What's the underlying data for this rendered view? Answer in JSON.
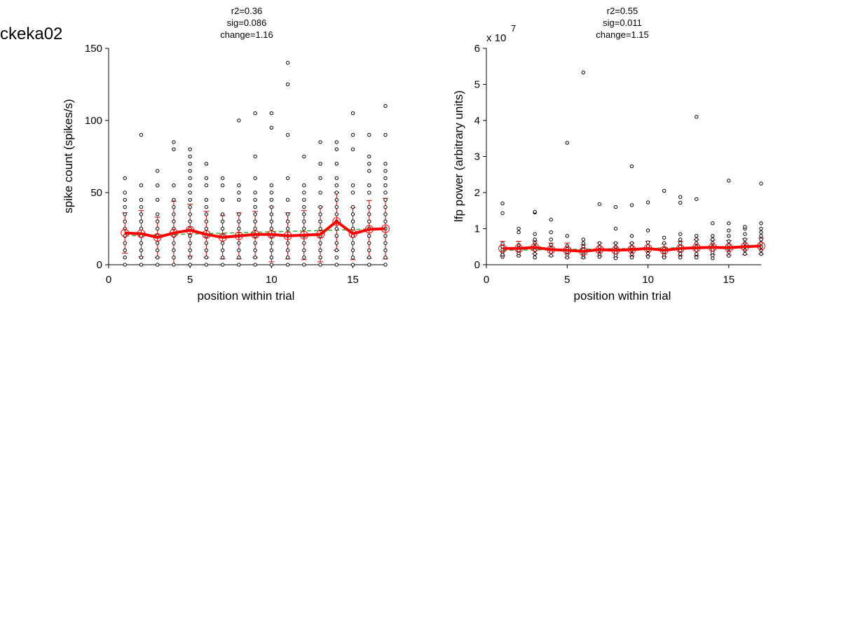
{
  "figure_title": "ckeka02",
  "chart_data": [
    {
      "type": "scatter",
      "annotation": [
        "r2=0.36",
        "sig=0.086",
        "change=1.16"
      ],
      "xlabel": "position within trial",
      "ylabel": "spike count (spikes/s)",
      "xlim": [
        0,
        17
      ],
      "ylim": [
        0,
        150
      ],
      "xticks": [
        0,
        5,
        10,
        15
      ],
      "yticks": [
        0,
        50,
        100,
        150
      ],
      "exponent_label": "",
      "colors": {
        "points": "#000000",
        "mean": "#ff0000",
        "errorbar": "#cc0000",
        "fit": "#33aa33"
      },
      "points": [
        {
          "x": 1,
          "y": [
            0,
            5,
            10,
            15,
            20,
            25,
            30,
            35,
            40,
            45,
            50,
            60
          ]
        },
        {
          "x": 2,
          "y": [
            0,
            5,
            10,
            15,
            20,
            25,
            30,
            35,
            40,
            45,
            55,
            90
          ]
        },
        {
          "x": 3,
          "y": [
            0,
            5,
            10,
            15,
            20,
            25,
            30,
            35,
            45,
            55,
            65
          ]
        },
        {
          "x": 4,
          "y": [
            0,
            5,
            10,
            15,
            20,
            25,
            30,
            35,
            40,
            45,
            55,
            80,
            85
          ]
        },
        {
          "x": 5,
          "y": [
            0,
            5,
            10,
            15,
            20,
            25,
            30,
            35,
            40,
            45,
            50,
            55,
            60,
            65,
            70,
            75,
            80
          ]
        },
        {
          "x": 6,
          "y": [
            0,
            5,
            10,
            15,
            20,
            25,
            30,
            35,
            40,
            45,
            55,
            60,
            70
          ]
        },
        {
          "x": 7,
          "y": [
            0,
            5,
            10,
            15,
            20,
            25,
            30,
            35,
            45,
            55,
            60
          ]
        },
        {
          "x": 8,
          "y": [
            0,
            5,
            10,
            15,
            20,
            25,
            30,
            35,
            45,
            50,
            55,
            100
          ]
        },
        {
          "x": 9,
          "y": [
            0,
            5,
            10,
            15,
            20,
            25,
            30,
            35,
            40,
            45,
            50,
            60,
            75,
            105
          ]
        },
        {
          "x": 10,
          "y": [
            0,
            5,
            10,
            15,
            20,
            25,
            30,
            35,
            40,
            45,
            50,
            55,
            95,
            105
          ]
        },
        {
          "x": 11,
          "y": [
            0,
            5,
            10,
            15,
            20,
            25,
            30,
            35,
            45,
            60,
            90,
            125,
            140
          ]
        },
        {
          "x": 12,
          "y": [
            0,
            5,
            10,
            15,
            20,
            25,
            30,
            35,
            40,
            45,
            50,
            55,
            75
          ]
        },
        {
          "x": 13,
          "y": [
            0,
            5,
            10,
            15,
            20,
            25,
            30,
            35,
            40,
            50,
            60,
            70,
            85
          ]
        },
        {
          "x": 14,
          "y": [
            0,
            5,
            10,
            15,
            20,
            25,
            30,
            35,
            40,
            45,
            50,
            55,
            60,
            70,
            80,
            85
          ]
        },
        {
          "x": 15,
          "y": [
            0,
            5,
            10,
            15,
            20,
            25,
            30,
            35,
            40,
            50,
            55,
            80,
            90,
            105
          ]
        },
        {
          "x": 16,
          "y": [
            0,
            5,
            10,
            15,
            20,
            25,
            30,
            35,
            40,
            50,
            55,
            65,
            70,
            75,
            90
          ]
        },
        {
          "x": 17,
          "y": [
            0,
            5,
            10,
            15,
            20,
            25,
            30,
            35,
            40,
            45,
            50,
            55,
            60,
            65,
            70,
            90,
            110
          ]
        }
      ],
      "mean": [
        22,
        21.5,
        19,
        22,
        24,
        21,
        19,
        20,
        21,
        21,
        20,
        20.5,
        21,
        30,
        21.5,
        24.5,
        25
      ],
      "sd": [
        14,
        16,
        14,
        22,
        18,
        16,
        15,
        16,
        16,
        19,
        16,
        17,
        19,
        20,
        18,
        20,
        21
      ],
      "fit": [
        20,
        25
      ]
    },
    {
      "type": "scatter",
      "annotation": [
        "r2=0.55",
        "sig=0.011",
        "change=1.15"
      ],
      "xlabel": "position within trial",
      "ylabel": "lfp power (arbitrary units)",
      "xlim": [
        0,
        17
      ],
      "ylim": [
        0,
        6
      ],
      "xticks": [
        0,
        5,
        10,
        15
      ],
      "yticks": [
        0,
        1,
        2,
        3,
        4,
        5,
        6
      ],
      "exponent_label": "x 10",
      "exponent_power": "7",
      "colors": {
        "points": "#000000",
        "mean": "#ff0000",
        "errorbar": "#cc0000",
        "fit": "#33aa33"
      },
      "points": [
        {
          "x": 1,
          "y": [
            0.22,
            0.28,
            0.35,
            0.42,
            0.5,
            0.58,
            1.43,
            1.7
          ]
        },
        {
          "x": 2,
          "y": [
            0.25,
            0.32,
            0.4,
            0.48,
            0.55,
            0.9,
            1.0
          ]
        },
        {
          "x": 3,
          "y": [
            0.2,
            0.3,
            0.4,
            0.5,
            0.6,
            0.7,
            0.85,
            1.45,
            1.47
          ]
        },
        {
          "x": 4,
          "y": [
            0.25,
            0.35,
            0.45,
            0.55,
            0.7,
            0.9,
            1.25
          ]
        },
        {
          "x": 5,
          "y": [
            0.2,
            0.28,
            0.36,
            0.44,
            0.52,
            0.8,
            3.38
          ]
        },
        {
          "x": 6,
          "y": [
            0.2,
            0.27,
            0.34,
            0.42,
            0.5,
            0.6,
            0.7,
            5.33
          ]
        },
        {
          "x": 7,
          "y": [
            0.22,
            0.3,
            0.4,
            0.5,
            0.6,
            1.68
          ]
        },
        {
          "x": 8,
          "y": [
            0.18,
            0.26,
            0.34,
            0.42,
            0.5,
            0.6,
            1.0,
            1.6
          ]
        },
        {
          "x": 9,
          "y": [
            0.2,
            0.3,
            0.4,
            0.5,
            0.6,
            0.8,
            1.65,
            2.73
          ]
        },
        {
          "x": 10,
          "y": [
            0.22,
            0.32,
            0.42,
            0.52,
            0.62,
            0.95,
            1.73
          ]
        },
        {
          "x": 11,
          "y": [
            0.2,
            0.28,
            0.36,
            0.44,
            0.6,
            0.75,
            2.05
          ]
        },
        {
          "x": 12,
          "y": [
            0.2,
            0.3,
            0.4,
            0.5,
            0.6,
            0.7,
            0.85,
            1.72,
            1.88
          ]
        },
        {
          "x": 13,
          "y": [
            0.2,
            0.3,
            0.4,
            0.5,
            0.6,
            0.7,
            0.8,
            1.82,
            4.1
          ]
        },
        {
          "x": 14,
          "y": [
            0.18,
            0.26,
            0.34,
            0.42,
            0.5,
            0.6,
            0.7,
            0.8,
            1.15
          ]
        },
        {
          "x": 15,
          "y": [
            0.25,
            0.35,
            0.45,
            0.55,
            0.65,
            0.8,
            0.95,
            1.15,
            2.33
          ]
        },
        {
          "x": 16,
          "y": [
            0.3,
            0.4,
            0.5,
            0.6,
            0.7,
            0.85,
            1.0,
            1.05
          ]
        },
        {
          "x": 17,
          "y": [
            0.3,
            0.4,
            0.5,
            0.6,
            0.7,
            0.8,
            0.9,
            1.0,
            1.15,
            2.25
          ]
        }
      ],
      "mean": [
        0.45,
        0.45,
        0.48,
        0.42,
        0.4,
        0.37,
        0.42,
        0.4,
        0.42,
        0.45,
        0.4,
        0.45,
        0.47,
        0.48,
        0.47,
        0.5,
        0.52
      ],
      "sd": [
        0.2,
        0.2,
        0.18,
        0.18,
        0.2,
        0.18,
        0.18,
        0.2,
        0.18,
        0.2,
        0.18,
        0.2,
        0.22,
        0.2,
        0.2,
        0.22,
        0.22
      ],
      "fit": [
        0.4,
        0.5
      ]
    }
  ]
}
